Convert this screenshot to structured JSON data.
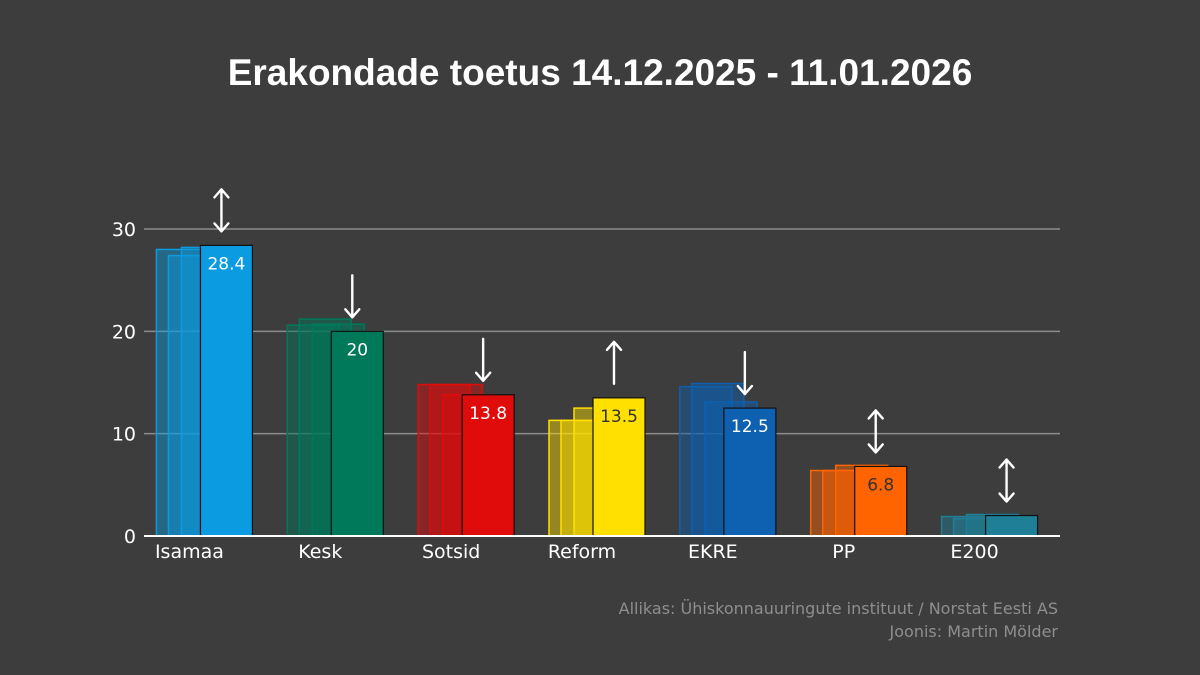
{
  "chart_data": {
    "type": "bar",
    "title": "Erakondade toetus 14.12.2025 - 11.01.2026",
    "xlabel": "",
    "ylabel": "",
    "ylim": [
      0,
      30
    ],
    "yticks": [
      0,
      10,
      20,
      30
    ],
    "grid": true,
    "categories": [
      "Isamaa",
      "Kesk",
      "Sotsid",
      "Reform",
      "EKRE",
      "PP",
      "E200"
    ],
    "colors": [
      "#0a9be0",
      "#00785a",
      "#e00b0b",
      "#ffe000",
      "#0e60b0",
      "#ff6400",
      "#1f7f97"
    ],
    "series": [
      {
        "values": [
          28.0,
          20.6,
          14.8,
          11.3,
          14.6,
          6.4,
          1.9
        ]
      },
      {
        "values": [
          27.4,
          21.2,
          14.8,
          11.3,
          14.9,
          6.4,
          1.7
        ]
      },
      {
        "values": [
          28.2,
          20.7,
          13.8,
          12.5,
          13.1,
          6.9,
          2.1
        ]
      },
      {
        "values": [
          28.4,
          20.0,
          13.8,
          13.5,
          12.5,
          6.8,
          2.0
        ]
      }
    ],
    "labels": [
      "28.4",
      "20",
      "13.8",
      "13.5",
      "12.5",
      "6.8",
      ""
    ],
    "label_colors": [
      "#ffffff",
      "#ffffff",
      "#ffffff",
      "#333333",
      "#ffffff",
      "#333333",
      "#ffffff"
    ],
    "trends": [
      "stable",
      "down",
      "down",
      "up",
      "down",
      "stable",
      "stable"
    ]
  },
  "footer": {
    "source": "Allikas: Ühiskonnauuringute instituut / Norstat Eesti AS",
    "credit": "Joonis: Martin Mölder"
  }
}
